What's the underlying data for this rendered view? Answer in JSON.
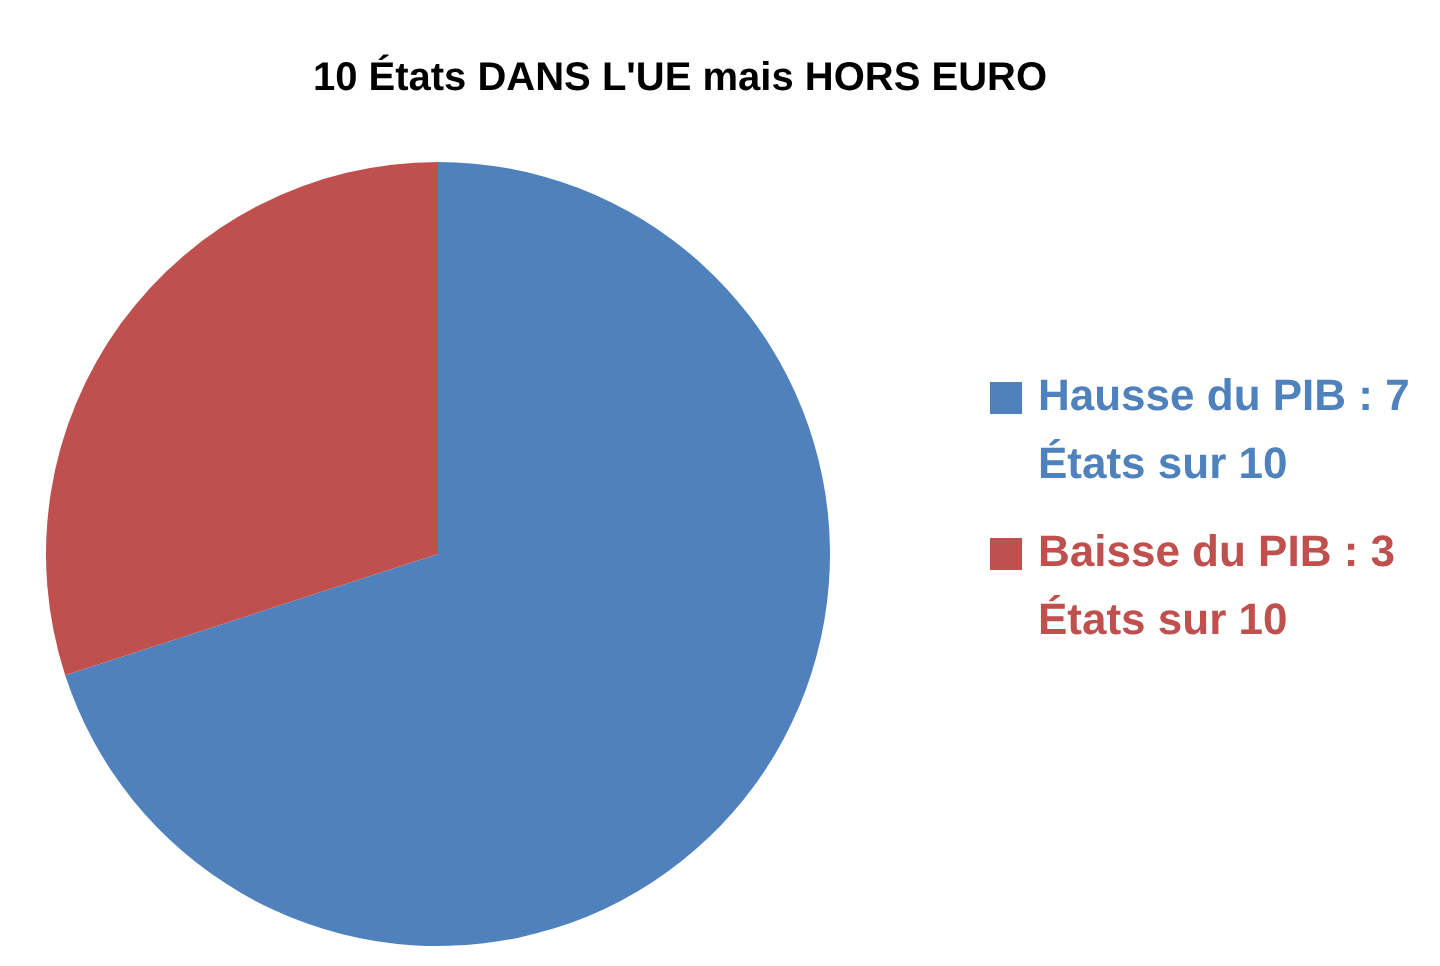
{
  "chart_data": {
    "type": "pie",
    "title": "10 États DANS L'UE mais HORS EURO",
    "categories": [
      "Hausse du PIB : 7 États sur 10",
      "Baisse du PIB : 3 États sur 10"
    ],
    "values": [
      70,
      30
    ],
    "colors": [
      "#4f81bd",
      "#c0504d"
    ],
    "legend": "right"
  }
}
